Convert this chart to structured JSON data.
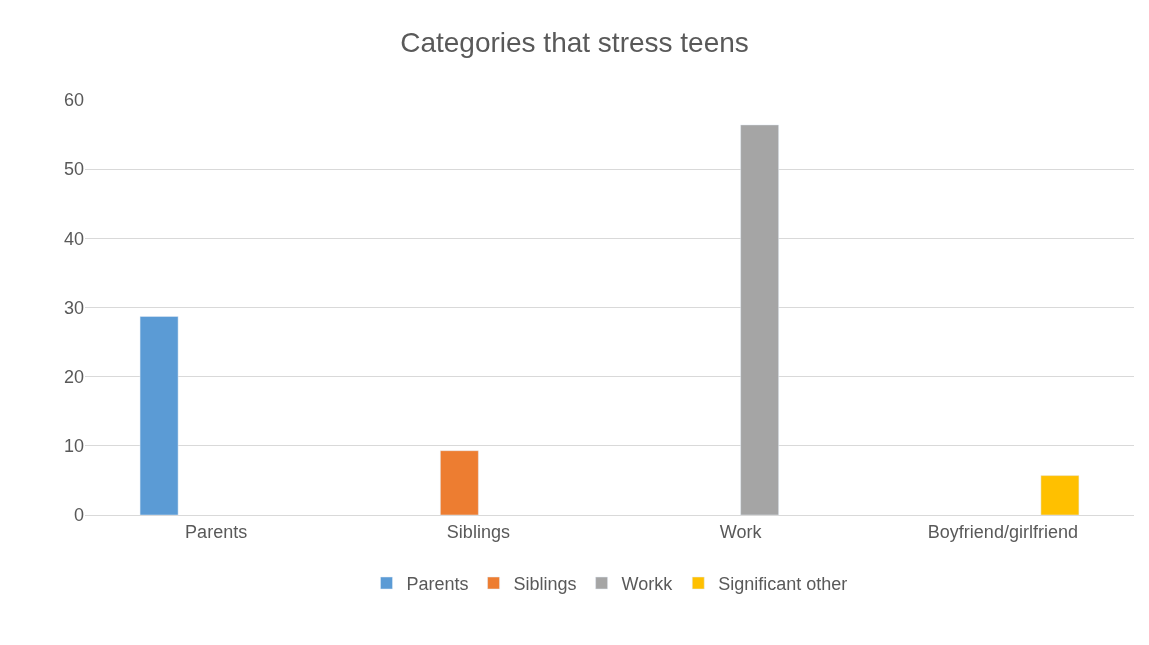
{
  "chart_data": {
    "type": "bar",
    "title": "Categories that stress teens",
    "categories": [
      "Parents",
      "Siblings",
      "Work",
      "Boyfriend/girlfriend"
    ],
    "series": [
      {
        "name": "Parents",
        "color": "#5b9bd5",
        "values": [
          28.7,
          null,
          null,
          null
        ]
      },
      {
        "name": "Siblings",
        "color": "#ed7d31",
        "values": [
          null,
          9.3,
          null,
          null
        ]
      },
      {
        "name": "Workk",
        "color": "#a5a5a5",
        "values": [
          null,
          null,
          56.4,
          null
        ]
      },
      {
        "name": "Significant other",
        "color": "#ffc000",
        "values": [
          null,
          null,
          null,
          5.7
        ]
      }
    ],
    "ylim": [
      0,
      60
    ],
    "yticks": [
      0,
      10,
      20,
      30,
      40,
      50,
      60
    ],
    "grid": "y",
    "legend": "bottom"
  }
}
